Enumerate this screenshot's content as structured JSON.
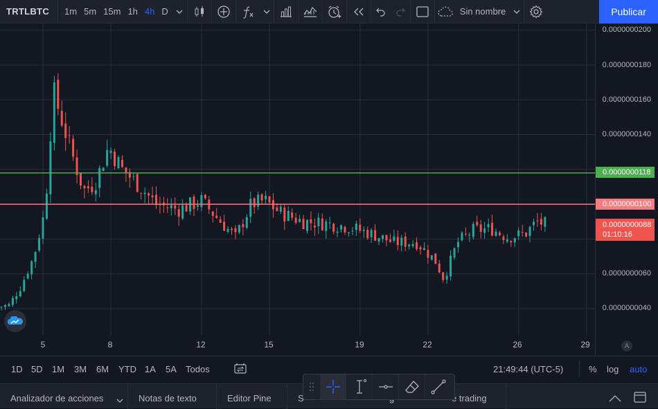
{
  "toolbar": {
    "symbol": "TRTLBTC",
    "timeframes": [
      "1m",
      "5m",
      "15m",
      "1h",
      "4h",
      "D"
    ],
    "active_timeframe": "4h",
    "layout_name": "Sin nombre",
    "publish_label": "Publicar"
  },
  "price_scale": {
    "labels": [
      "0.0000000200",
      "0.0000000180",
      "0.0000000160",
      "0.0000000140",
      "0.0000000060",
      "0.0000000040"
    ],
    "green_line_label": "0.0000000118",
    "red_line_label": "0.0000000100",
    "last_price_label": "0.0000000088",
    "countdown": "01:10:16",
    "auto_marker": "A"
  },
  "time_scale": {
    "labels": [
      "5",
      "8",
      "12",
      "15",
      "19",
      "22",
      "26",
      "29"
    ]
  },
  "range_bar": {
    "ranges": [
      "1D",
      "5D",
      "1M",
      "3M",
      "6M",
      "YTD",
      "1A",
      "5A",
      "Todos"
    ],
    "clock": "21:49:44 (UTC-5)",
    "percent": "%",
    "log": "log",
    "auto": "auto"
  },
  "bottom_bar": {
    "tabs": [
      "Analizador de acciones",
      "Notas de texto",
      "Editor Pine",
      "S",
      "g",
      "e trading"
    ]
  },
  "colors": {
    "up": "#26a69a",
    "down": "#ef5350",
    "green_line": "#4caf50",
    "red_line": "#f77c80",
    "accent": "#2962ff",
    "background": "#131722"
  },
  "chart_data": {
    "type": "candlestick",
    "symbol": "TRTLBTC",
    "interval": "4h",
    "y_unit": "BTC",
    "ylim": [
      3.2e-09,
      2.01e-08
    ],
    "x_tick_labels": [
      "5",
      "8",
      "12",
      "15",
      "19",
      "22",
      "26",
      "29"
    ],
    "horizontal_lines": [
      {
        "color": "green",
        "price": 1.18e-08
      },
      {
        "color": "red",
        "price": 1e-08
      }
    ],
    "last_price": 8.8e-09,
    "close_path": [
      {
        "day": 3.0,
        "close": 4.1e-09
      },
      {
        "day": 3.5,
        "close": 4.2e-09
      },
      {
        "day": 4.0,
        "close": 5.2e-09
      },
      {
        "day": 4.6,
        "close": 7e-09
      },
      {
        "day": 5.1,
        "close": 9.7e-09
      },
      {
        "day": 5.45,
        "close": 1.65e-08
      },
      {
        "day": 5.8,
        "close": 1.5e-08
      },
      {
        "day": 6.3,
        "close": 1.28e-08
      },
      {
        "day": 6.8,
        "close": 1.08e-08
      },
      {
        "day": 7.3,
        "close": 1.12e-08
      },
      {
        "day": 7.9,
        "close": 1.33e-08
      },
      {
        "day": 8.5,
        "close": 1.2e-08
      },
      {
        "day": 9.3,
        "close": 1.1e-08
      },
      {
        "day": 10.0,
        "close": 1e-08
      },
      {
        "day": 11.0,
        "close": 9.7e-09
      },
      {
        "day": 12.0,
        "close": 1.02e-08
      },
      {
        "day": 12.7,
        "close": 9.2e-09
      },
      {
        "day": 13.5,
        "close": 8.1e-09
      },
      {
        "day": 14.2,
        "close": 1e-08
      },
      {
        "day": 14.8,
        "close": 1.02e-08
      },
      {
        "day": 15.5,
        "close": 9.5e-09
      },
      {
        "day": 16.5,
        "close": 9e-09
      },
      {
        "day": 17.5,
        "close": 8.9e-09
      },
      {
        "day": 18.5,
        "close": 8.7e-09
      },
      {
        "day": 19.5,
        "close": 8.3e-09
      },
      {
        "day": 20.5,
        "close": 7.8e-09
      },
      {
        "day": 21.5,
        "close": 7.8e-09
      },
      {
        "day": 22.3,
        "close": 6.8e-09
      },
      {
        "day": 22.7,
        "close": 5.7e-09
      },
      {
        "day": 23.3,
        "close": 7.8e-09
      },
      {
        "day": 24.0,
        "close": 8.5e-09
      },
      {
        "day": 24.8,
        "close": 8.6e-09
      },
      {
        "day": 25.5,
        "close": 8.1e-09
      },
      {
        "day": 26.3,
        "close": 8.3e-09
      },
      {
        "day": 26.8,
        "close": 9e-09
      },
      {
        "day": 27.3,
        "close": 8.8e-09
      }
    ]
  }
}
